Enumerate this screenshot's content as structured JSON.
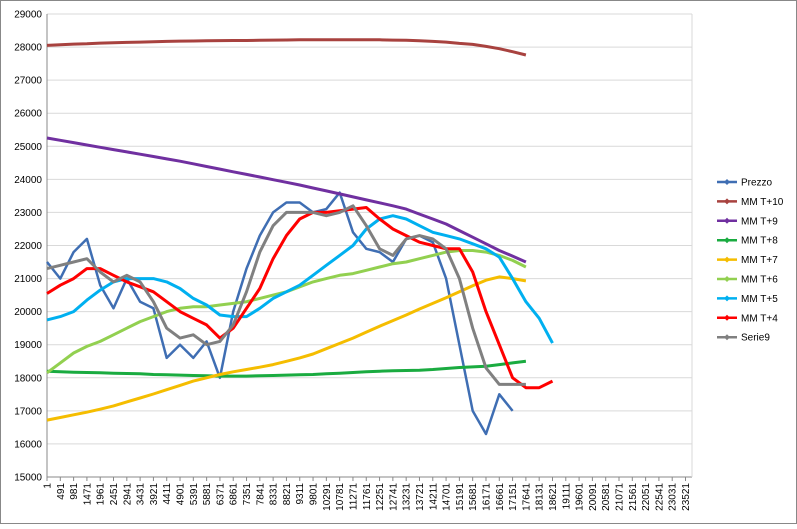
{
  "chart_data": {
    "type": "line",
    "xlim": [
      1,
      23760
    ],
    "ylim": [
      15000,
      29000
    ],
    "xticks": [
      1,
      491,
      981,
      1471,
      1961,
      2451,
      2941,
      3431,
      3921,
      4411,
      4901,
      5391,
      5881,
      6371,
      6861,
      7351,
      7841,
      8331,
      8821,
      9311,
      9801,
      10291,
      10781,
      11271,
      11761,
      12251,
      12741,
      13231,
      13721,
      14211,
      14701,
      15191,
      15681,
      16171,
      16661,
      17151,
      17641,
      18131,
      18621,
      19111,
      19601,
      20091,
      20581,
      21071,
      21561,
      22051,
      22541,
      23031,
      23521
    ],
    "yticks": [
      15000,
      16000,
      17000,
      18000,
      19000,
      20000,
      21000,
      22000,
      23000,
      24000,
      25000,
      26000,
      27000,
      28000,
      29000
    ],
    "grid": true,
    "legend": "right",
    "x": [
      1,
      491,
      981,
      1471,
      1961,
      2451,
      2941,
      3431,
      3921,
      4411,
      4901,
      5391,
      5881,
      6371,
      6861,
      7351,
      7841,
      8331,
      8821,
      9311,
      9801,
      10291,
      10781,
      11271,
      11761,
      12251,
      12741,
      13231,
      13721,
      14211,
      14701,
      15191,
      15681,
      16171,
      16661,
      17151,
      17641,
      18131,
      18621
    ],
    "series": [
      {
        "name": "Prezzo",
        "color": "#3f6eb3",
        "values": [
          21500,
          21000,
          21800,
          22200,
          20800,
          20100,
          21000,
          20300,
          20100,
          18600,
          19000,
          18600,
          19100,
          18000,
          20000,
          21300,
          22300,
          23000,
          23300,
          23300,
          23000,
          23100,
          23600,
          22400,
          21900,
          21800,
          21500,
          22200,
          22300,
          22100,
          21000,
          19000,
          17000,
          16300,
          17500,
          17000,
          null,
          null,
          null
        ]
      },
      {
        "name": "MM T+10",
        "color": "#a8423f",
        "values": [
          28050,
          28070,
          28090,
          28100,
          28120,
          28130,
          28140,
          28150,
          28160,
          28170,
          28180,
          28185,
          28190,
          28195,
          28200,
          28200,
          28205,
          28210,
          28215,
          28220,
          28220,
          28220,
          28220,
          28220,
          28220,
          28220,
          28210,
          28205,
          28190,
          28170,
          28150,
          28110,
          28080,
          28020,
          27950,
          27860,
          27760,
          null,
          null
        ]
      },
      {
        "name": "MM T+9",
        "color": "#7030a0",
        "values": [
          25250,
          25180,
          25110,
          25040,
          24970,
          24900,
          24830,
          24760,
          24690,
          24620,
          24550,
          24470,
          24390,
          24310,
          24230,
          24150,
          24070,
          23990,
          23910,
          23830,
          23740,
          23650,
          23560,
          23470,
          23380,
          23290,
          23200,
          23100,
          22950,
          22800,
          22650,
          22450,
          22250,
          22050,
          21850,
          21680,
          21500,
          null,
          null
        ]
      },
      {
        "name": "MM T+8",
        "color": "#1aab40",
        "values": [
          18200,
          18180,
          18170,
          18160,
          18150,
          18140,
          18130,
          18120,
          18100,
          18090,
          18080,
          18070,
          18060,
          18050,
          18050,
          18050,
          18060,
          18070,
          18080,
          18090,
          18100,
          18120,
          18140,
          18160,
          18180,
          18200,
          18210,
          18220,
          18230,
          18250,
          18280,
          18310,
          18330,
          18350,
          18400,
          18450,
          18500,
          null,
          null
        ]
      },
      {
        "name": "MM T+7",
        "color": "#f5bd00",
        "values": [
          16720,
          16800,
          16880,
          16960,
          17050,
          17150,
          17270,
          17390,
          17510,
          17640,
          17770,
          17900,
          18000,
          18100,
          18180,
          18250,
          18320,
          18400,
          18500,
          18600,
          18720,
          18880,
          19040,
          19200,
          19380,
          19560,
          19730,
          19900,
          20080,
          20250,
          20420,
          20600,
          20780,
          20950,
          21050,
          21000,
          20930,
          null,
          null
        ]
      },
      {
        "name": "MM T+6",
        "color": "#92d050",
        "values": [
          18150,
          18450,
          18750,
          18950,
          19100,
          19300,
          19500,
          19700,
          19850,
          20000,
          20100,
          20150,
          20150,
          20200,
          20250,
          20300,
          20400,
          20500,
          20600,
          20750,
          20900,
          21000,
          21100,
          21150,
          21250,
          21350,
          21450,
          21500,
          21600,
          21700,
          21800,
          21850,
          21850,
          21800,
          21700,
          21550,
          21350,
          null,
          null
        ]
      },
      {
        "name": "MM T+5",
        "color": "#00b0f0",
        "values": [
          19750,
          19850,
          20000,
          20350,
          20650,
          20900,
          21000,
          21000,
          21000,
          20900,
          20700,
          20400,
          20200,
          19900,
          19850,
          19850,
          20100,
          20400,
          20600,
          20800,
          21100,
          21400,
          21700,
          22000,
          22500,
          22800,
          22900,
          22800,
          22600,
          22400,
          22300,
          22200,
          22050,
          21900,
          21650,
          21000,
          20300,
          19800,
          19050
        ]
      },
      {
        "name": "MM T+4",
        "color": "#ff0000",
        "values": [
          20550,
          20800,
          21000,
          21300,
          21300,
          21100,
          20900,
          20750,
          20600,
          20300,
          20000,
          19800,
          19600,
          19200,
          19500,
          20100,
          20700,
          21600,
          22300,
          22800,
          23000,
          23000,
          23050,
          23100,
          23150,
          22800,
          22500,
          22300,
          22100,
          22000,
          21900,
          21900,
          21200,
          20000,
          19000,
          18000,
          17700,
          17700,
          17900
        ]
      },
      {
        "name": "Serie9",
        "color": "#808080",
        "values": [
          21300,
          21400,
          21500,
          21600,
          21200,
          20900,
          21100,
          20900,
          20300,
          19500,
          19200,
          19300,
          19000,
          19100,
          19600,
          20600,
          21800,
          22600,
          23000,
          23000,
          23000,
          22900,
          23000,
          23200,
          22600,
          21900,
          21700,
          22200,
          22300,
          22200,
          21900,
          21000,
          19500,
          18300,
          17800,
          17800,
          17800,
          null,
          null
        ]
      }
    ]
  }
}
